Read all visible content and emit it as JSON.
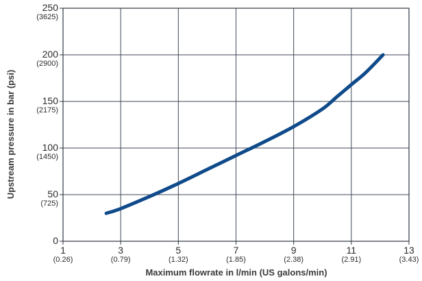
{
  "chart_data": {
    "type": "line",
    "title": "",
    "xlabel": "Maximum flowrate in l/min (US galons/min)",
    "ylabel": "Upstream pressure in bar (psi)",
    "xlim": [
      1,
      13
    ],
    "ylim": [
      0,
      250
    ],
    "grid": true,
    "x_ticks": [
      {
        "value": 1,
        "label": "1",
        "sub": "(0.26)"
      },
      {
        "value": 3,
        "label": "3",
        "sub": "(0.79)"
      },
      {
        "value": 5,
        "label": "5",
        "sub": "(1.32)"
      },
      {
        "value": 7,
        "label": "7",
        "sub": "(1.85)"
      },
      {
        "value": 9,
        "label": "9",
        "sub": "(2.38)"
      },
      {
        "value": 11,
        "label": "11",
        "sub": "(2.91)"
      },
      {
        "value": 13,
        "label": "13",
        "sub": "(3.43)"
      }
    ],
    "y_ticks": [
      {
        "value": 0,
        "label": "0",
        "sub": ""
      },
      {
        "value": 50,
        "label": "50",
        "sub": "(725)"
      },
      {
        "value": 100,
        "label": "100",
        "sub": "(1450)"
      },
      {
        "value": 150,
        "label": "150",
        "sub": "(2175)"
      },
      {
        "value": 200,
        "label": "200",
        "sub": "(2900)"
      },
      {
        "value": 250,
        "label": "250",
        "sub": "(3625)"
      }
    ],
    "series": [
      {
        "color": "#0f4a8a",
        "x": [
          2.5,
          3.0,
          4.0,
          5.0,
          6.0,
          7.0,
          8.0,
          9.0,
          10.0,
          10.5,
          11.0,
          11.5,
          12.1
        ],
        "y": [
          30,
          35,
          48,
          62,
          77,
          92,
          107,
          123,
          142,
          155,
          168,
          181,
          200
        ]
      }
    ]
  }
}
